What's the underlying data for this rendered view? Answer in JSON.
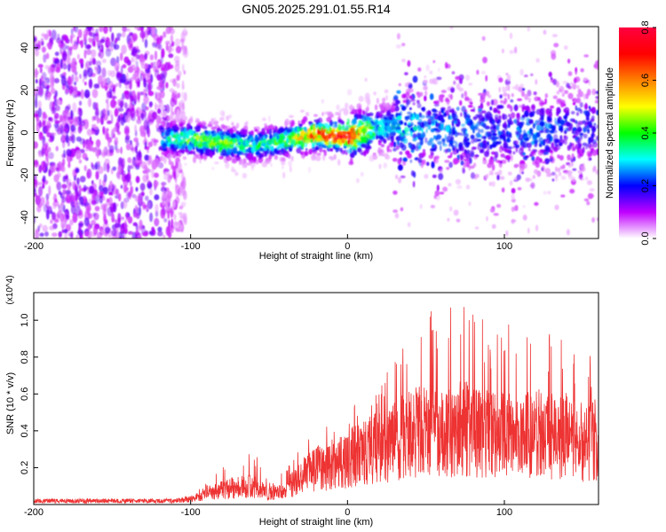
{
  "title": "GN05.2025.291.01.55.R14",
  "chart_data": [
    {
      "type": "heatmap",
      "xlabel": "Height of straight line (km)",
      "ylabel": "Frequency (Hz)",
      "xlim": [
        -200,
        160
      ],
      "ylim": [
        -50,
        50
      ],
      "xticks": [
        -200,
        -100,
        0,
        100
      ],
      "yticks": [
        -40,
        -20,
        0,
        20,
        40
      ],
      "colorbar": {
        "label": "Normalized spectral amplitude",
        "range": [
          0,
          0.8
        ],
        "ticks": [
          "0.0",
          "0.2",
          "0.4",
          "0.6",
          "0.8"
        ],
        "colors": [
          "#ffffff",
          "#c000ff",
          "#0000ff",
          "#00ffff",
          "#00ff00",
          "#ffff00",
          "#ff8000",
          "#ff0000",
          "#ff0040"
        ]
      },
      "ridge": {
        "x": [
          -120,
          -100,
          -80,
          -60,
          -40,
          -20,
          0,
          20,
          40,
          60,
          80,
          100,
          120,
          140,
          160
        ],
        "center_freq": [
          -3,
          -3,
          -5,
          -6,
          -4,
          -1,
          -2,
          2,
          3,
          1,
          0,
          0,
          0,
          2,
          2
        ],
        "peak_amplitude": [
          0.3,
          0.45,
          0.45,
          0.35,
          0.4,
          0.7,
          0.75,
          0.3,
          0.3,
          0.25,
          0.25,
          0.2,
          0.25,
          0.2,
          0.2
        ]
      },
      "noise_region_x": [
        -200,
        -103
      ]
    },
    {
      "type": "line",
      "xlabel": "Height of straight line (km)",
      "ylabel": "SNR (10 * v/v)",
      "y_multiplier": "(x10^4)",
      "xlim": [
        -200,
        160
      ],
      "ylim": [
        0,
        1.15
      ],
      "xticks": [
        -200,
        -100,
        0,
        100
      ],
      "yticks": [
        "0.2",
        "0.4",
        "0.6",
        "0.8",
        "1.0"
      ],
      "color": "#ee3333",
      "envelope": {
        "x": [
          -200,
          -150,
          -110,
          -100,
          -90,
          -80,
          -70,
          -60,
          -50,
          -40,
          -30,
          -20,
          -10,
          0,
          10,
          20,
          30,
          40,
          50,
          60,
          70,
          80,
          90,
          100,
          110,
          120,
          130,
          140,
          150,
          160
        ],
        "mean": [
          0.02,
          0.02,
          0.02,
          0.03,
          0.06,
          0.08,
          0.1,
          0.1,
          0.06,
          0.08,
          0.15,
          0.2,
          0.22,
          0.25,
          0.3,
          0.32,
          0.35,
          0.4,
          0.42,
          0.4,
          0.42,
          0.42,
          0.4,
          0.38,
          0.38,
          0.4,
          0.38,
          0.38,
          0.35,
          0.36
        ],
        "peak": [
          0.03,
          0.03,
          0.03,
          0.06,
          0.12,
          0.2,
          0.25,
          0.3,
          0.12,
          0.22,
          0.32,
          0.45,
          0.5,
          0.5,
          0.6,
          0.65,
          0.8,
          0.9,
          1.05,
          1.08,
          1.1,
          1.13,
          0.95,
          1.0,
          0.92,
          0.9,
          0.95,
          0.88,
          0.8,
          0.82
        ]
      }
    }
  ]
}
